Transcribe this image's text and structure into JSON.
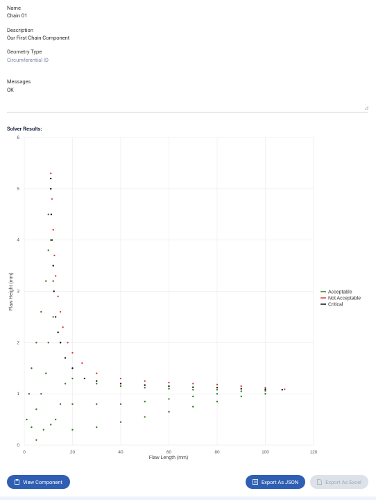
{
  "form": {
    "fields": [
      {
        "label": "Name",
        "value": "Chain 01"
      },
      {
        "label": "Description",
        "value": "Our First Chain Component"
      },
      {
        "label": "Geometry Type",
        "value": "Circumferential ID"
      },
      {
        "label": "Messages",
        "value": "OK"
      }
    ]
  },
  "section_title": "Solver Results:",
  "chart_data": {
    "type": "scatter",
    "xlabel": "Flaw Length (mm)",
    "ylabel": "Flaw Height (mm)",
    "xlim": [
      0,
      120
    ],
    "ylim": [
      0,
      6
    ],
    "xticks": [
      0,
      20,
      40,
      60,
      80,
      100,
      120
    ],
    "yticks": [
      0,
      1,
      2,
      3,
      4,
      5,
      6
    ],
    "grid": true,
    "legend": "right",
    "series": [
      {
        "name": "Acceptable",
        "color": "#2e7d1e",
        "x": [
          1,
          3,
          5,
          2,
          5,
          8,
          3,
          7,
          11,
          5,
          9,
          13,
          7,
          10,
          15,
          9,
          12,
          17,
          10,
          12,
          15,
          10,
          11,
          20,
          20,
          20,
          30,
          30,
          30,
          40,
          40,
          40,
          50,
          50,
          50,
          60,
          60,
          60,
          70,
          70,
          70,
          80,
          80,
          80,
          90,
          90,
          100,
          100
        ],
        "y": [
          0.5,
          0.35,
          0.1,
          1.0,
          0.7,
          0.3,
          1.5,
          1.0,
          0.4,
          2.0,
          1.4,
          0.5,
          2.6,
          2.0,
          0.8,
          3.2,
          2.5,
          1.2,
          3.8,
          3.2,
          2.0,
          4.5,
          4.0,
          0.3,
          0.8,
          1.3,
          0.35,
          0.8,
          1.2,
          0.45,
          0.8,
          1.15,
          0.55,
          0.85,
          1.12,
          0.65,
          0.9,
          1.1,
          0.75,
          0.95,
          1.08,
          0.85,
          1.0,
          1.08,
          0.95,
          1.05,
          1.0,
          1.06
        ]
      },
      {
        "name": "Not Acceptable",
        "color": "#e53935",
        "x": [
          11,
          11.5,
          12,
          12.5,
          13,
          14,
          15,
          16,
          18,
          20,
          24,
          30,
          40,
          50,
          60,
          70,
          80,
          90,
          100,
          108
        ],
        "y": [
          5.3,
          4.8,
          4.2,
          3.7,
          3.3,
          2.9,
          2.6,
          2.3,
          2.0,
          1.8,
          1.6,
          1.4,
          1.3,
          1.25,
          1.22,
          1.2,
          1.18,
          1.15,
          1.12,
          1.09
        ]
      },
      {
        "name": "Critical",
        "color": "#111111",
        "x": [
          11,
          11,
          11.2,
          11.5,
          12,
          12.3,
          13,
          14,
          15,
          17,
          20,
          25,
          30,
          40,
          50,
          60,
          70,
          80,
          90,
          100,
          107
        ],
        "y": [
          5.2,
          5.0,
          4.5,
          4.0,
          3.5,
          3.0,
          2.5,
          2.2,
          2.0,
          1.7,
          1.5,
          1.3,
          1.25,
          1.2,
          1.17,
          1.15,
          1.13,
          1.12,
          1.1,
          1.09,
          1.08
        ]
      }
    ]
  },
  "buttons": [
    "View Component",
    "Export As JSON",
    "Export As Excel"
  ]
}
